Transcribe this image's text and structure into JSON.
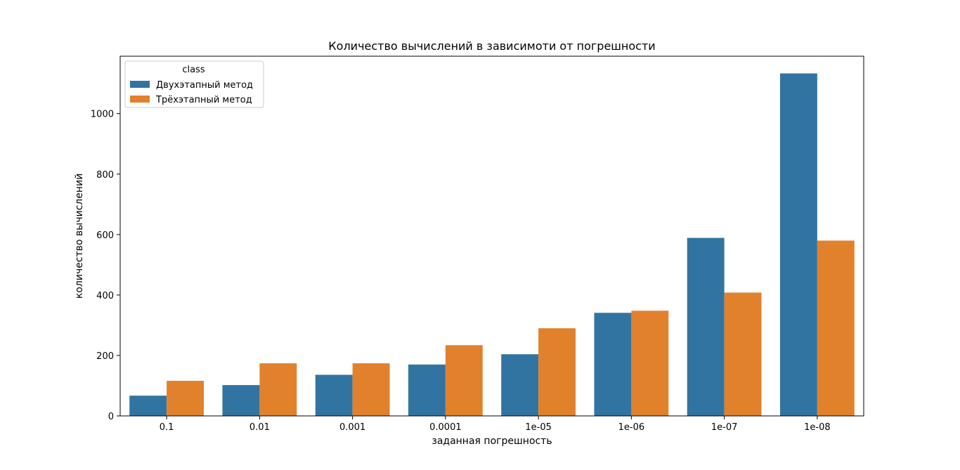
{
  "chart_data": {
    "type": "bar",
    "title": "Количество вычислений в зависимоти от погрешности",
    "xlabel": "заданная погрешность",
    "ylabel": "количество вычислений",
    "categories": [
      "0.1",
      "0.01",
      "0.001",
      "0.0001",
      "1e-05",
      "1e-06",
      "1e-07",
      "1e-08"
    ],
    "series": [
      {
        "name": "Двухэтапный метод",
        "color": "#3274a1",
        "values": [
          67,
          102,
          136,
          170,
          204,
          341,
          589,
          1133
        ]
      },
      {
        "name": "Трёхэтапный метод",
        "color": "#e1812c",
        "values": [
          116,
          174,
          174,
          234,
          290,
          348,
          408,
          580
        ]
      }
    ],
    "ylim": [
      0,
      1190
    ],
    "yticks": [
      0,
      200,
      400,
      600,
      800,
      1000
    ],
    "legend": {
      "title": "class",
      "placement": "top-left"
    },
    "grid": false
  }
}
